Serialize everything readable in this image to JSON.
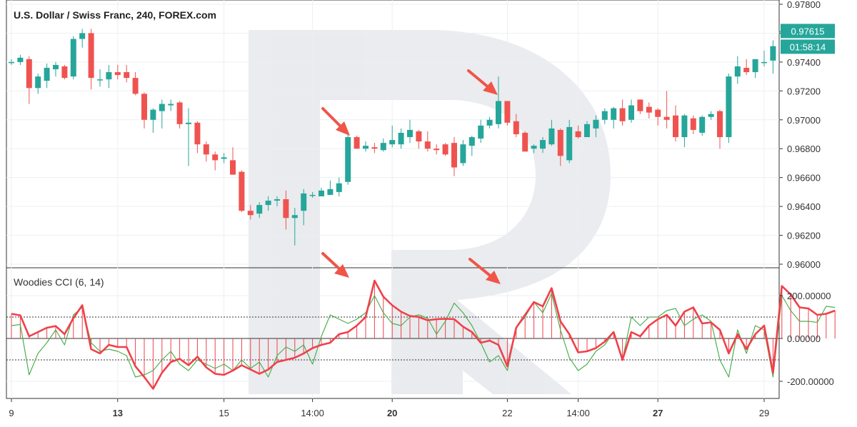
{
  "chart_data": [
    {
      "type": "candlestick",
      "title": "U.S. Dollar / Swiss Franc, 240, FOREX.com",
      "ylim": [
        0.96,
        0.978
      ],
      "y_ticks": [
        "0.97800",
        "0.97600",
        "0.97400",
        "0.97200",
        "0.97000",
        "0.96800",
        "0.96600",
        "0.96400",
        "0.96200",
        "0.96000"
      ],
      "y_tick_values": [
        0.978,
        0.976,
        0.974,
        0.972,
        0.97,
        0.968,
        0.966,
        0.964,
        0.962,
        0.96
      ],
      "last_price_label": "0.97615",
      "countdown_label": "01:58:14",
      "last_price": 0.97615,
      "candles": [
        [
          0.974,
          0.9742,
          0.9738,
          0.974
        ],
        [
          0.974,
          0.9745,
          0.9738,
          0.9743
        ],
        [
          0.9742,
          0.9744,
          0.9711,
          0.9722
        ],
        [
          0.9722,
          0.9732,
          0.9718,
          0.973
        ],
        [
          0.9727,
          0.9739,
          0.9722,
          0.9736
        ],
        [
          0.9735,
          0.974,
          0.973,
          0.9738
        ],
        [
          0.9737,
          0.9738,
          0.9728,
          0.9729
        ],
        [
          0.973,
          0.9758,
          0.9728,
          0.9756
        ],
        [
          0.9756,
          0.9763,
          0.975,
          0.976
        ],
        [
          0.976,
          0.9763,
          0.9721,
          0.9729
        ],
        [
          0.9728,
          0.9735,
          0.9723,
          0.9728
        ],
        [
          0.9728,
          0.9738,
          0.9722,
          0.9733
        ],
        [
          0.9733,
          0.9738,
          0.9728,
          0.9731
        ],
        [
          0.9733,
          0.9738,
          0.9726,
          0.9729
        ],
        [
          0.9729,
          0.9733,
          0.9717,
          0.9718
        ],
        [
          0.9718,
          0.9719,
          0.9694,
          0.97
        ],
        [
          0.97,
          0.9708,
          0.9691,
          0.9707
        ],
        [
          0.9706,
          0.9714,
          0.9694,
          0.9711
        ],
        [
          0.971,
          0.9714,
          0.9706,
          0.9711
        ],
        [
          0.9712,
          0.9713,
          0.9694,
          0.9697
        ],
        [
          0.9697,
          0.9708,
          0.9668,
          0.9698
        ],
        [
          0.9698,
          0.9699,
          0.9677,
          0.9683
        ],
        [
          0.9683,
          0.9685,
          0.9671,
          0.9676
        ],
        [
          0.9676,
          0.9678,
          0.9665,
          0.9672
        ],
        [
          0.9673,
          0.9677,
          0.967,
          0.9674
        ],
        [
          0.9672,
          0.9681,
          0.9662,
          0.9662
        ],
        [
          0.9664,
          0.9665,
          0.9636,
          0.9637
        ],
        [
          0.9637,
          0.9641,
          0.9631,
          0.9634
        ],
        [
          0.9635,
          0.9643,
          0.9632,
          0.9641
        ],
        [
          0.9641,
          0.9647,
          0.9637,
          0.9644
        ],
        [
          0.9644,
          0.9647,
          0.964,
          0.9645
        ],
        [
          0.9645,
          0.9651,
          0.9624,
          0.9632
        ],
        [
          0.9632,
          0.9639,
          0.9613,
          0.9634
        ],
        [
          0.9637,
          0.9652,
          0.9627,
          0.9649
        ],
        [
          0.9648,
          0.965,
          0.9646,
          0.9648
        ],
        [
          0.9647,
          0.9653,
          0.9647,
          0.9651
        ],
        [
          0.9648,
          0.9658,
          0.9648,
          0.9652
        ],
        [
          0.965,
          0.966,
          0.9647,
          0.9656
        ],
        [
          0.9657,
          0.969,
          0.9655,
          0.9688
        ],
        [
          0.9688,
          0.9689,
          0.968,
          0.968
        ],
        [
          0.968,
          0.9685,
          0.9678,
          0.9682
        ],
        [
          0.9681,
          0.9684,
          0.9677,
          0.968
        ],
        [
          0.9679,
          0.9687,
          0.9678,
          0.9684
        ],
        [
          0.9683,
          0.9696,
          0.9681,
          0.9686
        ],
        [
          0.9683,
          0.9694,
          0.968,
          0.9691
        ],
        [
          0.9688,
          0.97,
          0.9684,
          0.9693
        ],
        [
          0.9692,
          0.9693,
          0.968,
          0.9685
        ],
        [
          0.9685,
          0.9692,
          0.9678,
          0.968
        ],
        [
          0.968,
          0.9683,
          0.9676,
          0.9679
        ],
        [
          0.9683,
          0.9684,
          0.9675,
          0.9676
        ],
        [
          0.9684,
          0.9688,
          0.9661,
          0.9667
        ],
        [
          0.967,
          0.9686,
          0.9668,
          0.9683
        ],
        [
          0.9682,
          0.9689,
          0.9675,
          0.9688
        ],
        [
          0.9687,
          0.97,
          0.9684,
          0.9696
        ],
        [
          0.9696,
          0.9702,
          0.9694,
          0.97
        ],
        [
          0.9697,
          0.973,
          0.9694,
          0.9713
        ],
        [
          0.9713,
          0.9713,
          0.9696,
          0.9698
        ],
        [
          0.9699,
          0.9704,
          0.9688,
          0.969
        ],
        [
          0.9691,
          0.9692,
          0.9678,
          0.9678
        ],
        [
          0.968,
          0.9683,
          0.9677,
          0.9682
        ],
        [
          0.968,
          0.9688,
          0.9677,
          0.9686
        ],
        [
          0.9683,
          0.97,
          0.9682,
          0.9694
        ],
        [
          0.9693,
          0.9694,
          0.9668,
          0.9675
        ],
        [
          0.9672,
          0.97,
          0.967,
          0.9695
        ],
        [
          0.9692,
          0.9696,
          0.9687,
          0.9688
        ],
        [
          0.9688,
          0.9699,
          0.9688,
          0.9697
        ],
        [
          0.9694,
          0.9703,
          0.9688,
          0.97
        ],
        [
          0.97,
          0.9708,
          0.9697,
          0.9706
        ],
        [
          0.97,
          0.9709,
          0.9694,
          0.9708
        ],
        [
          0.9708,
          0.9714,
          0.9696,
          0.9699
        ],
        [
          0.97,
          0.9714,
          0.9698,
          0.971
        ],
        [
          0.9714,
          0.9714,
          0.9704,
          0.9706
        ],
        [
          0.9709,
          0.9712,
          0.9701,
          0.9705
        ],
        [
          0.9707,
          0.9708,
          0.9696,
          0.9702
        ],
        [
          0.9702,
          0.972,
          0.9694,
          0.97
        ],
        [
          0.9703,
          0.971,
          0.9685,
          0.9688
        ],
        [
          0.9688,
          0.9704,
          0.9681,
          0.9703
        ],
        [
          0.9701,
          0.9703,
          0.969,
          0.9693
        ],
        [
          0.9691,
          0.9703,
          0.9689,
          0.9702
        ],
        [
          0.9702,
          0.9706,
          0.97,
          0.9704
        ],
        [
          0.9706,
          0.9707,
          0.968,
          0.9688
        ],
        [
          0.9688,
          0.9732,
          0.9684,
          0.973
        ],
        [
          0.973,
          0.9744,
          0.9725,
          0.9737
        ],
        [
          0.9736,
          0.9742,
          0.9731,
          0.9733
        ],
        [
          0.9733,
          0.9742,
          0.9729,
          0.9742
        ],
        [
          0.974,
          0.9748,
          0.9737,
          0.974
        ],
        [
          0.9741,
          0.9755,
          0.9732,
          0.9751
        ],
        [
          0.97615,
          0.97615,
          0.97615,
          0.97615
        ]
      ],
      "x_ticks": [
        {
          "index": 0,
          "label": "9",
          "bold": false
        },
        {
          "index": 12,
          "label": "13",
          "bold": true
        },
        {
          "index": 24,
          "label": "15",
          "bold": false
        },
        {
          "index": 34,
          "label": "14:00",
          "bold": false
        },
        {
          "index": 43,
          "label": "20",
          "bold": true
        },
        {
          "index": 56,
          "label": "22",
          "bold": false
        },
        {
          "index": 64,
          "label": "14:00",
          "bold": false
        },
        {
          "index": 73,
          "label": "27",
          "bold": true
        },
        {
          "index": 85,
          "label": "29",
          "bold": false
        }
      ]
    },
    {
      "type": "line",
      "title": "Woodies CCI (6, 14)",
      "ylim": [
        -285,
        285
      ],
      "y_ticks": [
        "200.00000",
        "0.00000",
        "-200.00000"
      ],
      "y_tick_values": [
        200,
        0,
        -200
      ],
      "levels": [
        100,
        0,
        -100
      ],
      "series": [
        {
          "color": "#f0404a",
          "values": [
            115,
            108,
            10,
            30,
            50,
            58,
            20,
            95,
            155,
            -50,
            -70,
            -30,
            -40,
            -40,
            -130,
            -180,
            -235,
            -160,
            -110,
            -95,
            -125,
            -85,
            -135,
            -165,
            -170,
            -150,
            -125,
            -145,
            -165,
            -145,
            -110,
            -100,
            -90,
            -70,
            -45,
            -30,
            -20,
            20,
            30,
            60,
            100,
            270,
            195,
            155,
            125,
            105,
            100,
            85,
            90,
            92,
            90,
            55,
            30,
            -20,
            -10,
            -30,
            -130,
            50,
            110,
            170,
            150,
            235,
            80,
            20,
            -65,
            -60,
            -45,
            -15,
            30,
            -100,
            30,
            10,
            60,
            90,
            110,
            60,
            125,
            145,
            70,
            75,
            40,
            -70,
            20,
            -50,
            20,
            60,
            -160,
            245,
            205,
            145,
            140,
            110,
            115,
            130
          ]
        },
        {
          "color": "#4caf50",
          "values": [
            60,
            65,
            -170,
            -70,
            -20,
            40,
            -30,
            110,
            145,
            -20,
            -60,
            -50,
            -60,
            -80,
            -180,
            -170,
            -150,
            -100,
            -60,
            -120,
            -150,
            -100,
            -120,
            -140,
            -120,
            -150,
            -100,
            -140,
            -110,
            -180,
            -80,
            -40,
            -60,
            -30,
            -120,
            10,
            110,
            90,
            70,
            90,
            120,
            200,
            120,
            70,
            60,
            100,
            110,
            95,
            20,
            80,
            165,
            120,
            60,
            -20,
            -110,
            -80,
            -150,
            50,
            100,
            170,
            120,
            210,
            40,
            -90,
            -150,
            -120,
            -60,
            -30,
            30,
            -100,
            100,
            60,
            100,
            100,
            130,
            140,
            60,
            90,
            110,
            80,
            -100,
            -180,
            40,
            -70,
            60,
            40,
            -180,
            200,
            130,
            80,
            80,
            75,
            150,
            145
          ]
        }
      ],
      "histogram_color": "#f0404a"
    }
  ],
  "watermark": "R"
}
